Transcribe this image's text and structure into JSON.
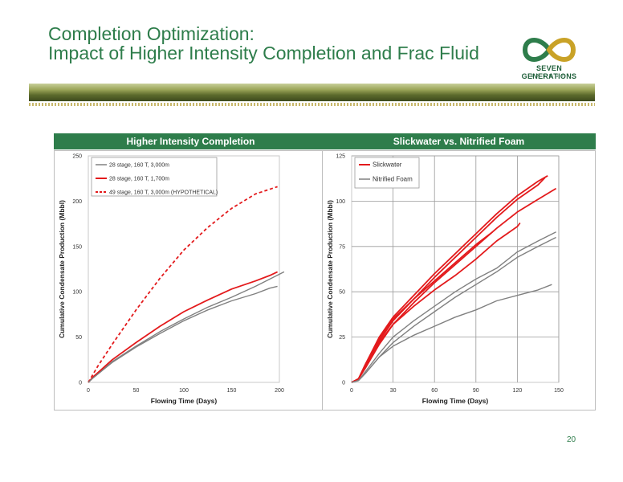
{
  "header": {
    "title_line1": "Completion Optimization:",
    "title_line2": "Impact of Higher Intensity Completion and Frac Fluid",
    "logo_text": "SEVEN GENERATIONS",
    "logo_subtext": "ENERGY",
    "page_number": "20"
  },
  "colors": {
    "brand_green": "#2e7d4b",
    "red_series": "#e31a1c",
    "gray_series": "#808080"
  },
  "panels": [
    {
      "heading": "Higher Intensity Completion"
    },
    {
      "heading": "Slickwater vs. Nitrified Foam"
    }
  ],
  "chart_data": [
    {
      "type": "line",
      "xlabel": "Flowing Time (Days)",
      "ylabel": "Cumulative Condensate Production (Mbbl)",
      "xlim": [
        0,
        200
      ],
      "ylim": [
        0,
        250
      ],
      "xticks": [
        "0",
        "50",
        "100",
        "150",
        "200"
      ],
      "yticks": [
        "0",
        "50",
        "100",
        "150",
        "200",
        "250"
      ],
      "grid": false,
      "legend": "top-left",
      "series": [
        {
          "name": "28 stage, 160 T, 3,000m",
          "color": "#808080",
          "style": "solid",
          "points": [
            [
              0,
              0
            ],
            [
              5,
              5
            ],
            [
              25,
              23
            ],
            [
              50,
              40
            ],
            [
              75,
              56
            ],
            [
              100,
              70
            ],
            [
              125,
              83
            ],
            [
              150,
              94
            ],
            [
              175,
              106
            ],
            [
              190,
              114
            ],
            [
              205,
              122
            ]
          ]
        },
        {
          "name": "28 stage, 160 T, 1,700m",
          "color": "#e31a1c",
          "style": "solid",
          "points": [
            [
              0,
              0
            ],
            [
              5,
              6
            ],
            [
              25,
              25
            ],
            [
              50,
              44
            ],
            [
              75,
              62
            ],
            [
              100,
              78
            ],
            [
              125,
              91
            ],
            [
              150,
              103
            ],
            [
              175,
              112
            ],
            [
              190,
              118
            ],
            [
              198,
              122
            ]
          ]
        },
        {
          "name": "49 stage, 160 T, 3,000m (HYPOTHETICAL)",
          "color": "#e31a1c",
          "style": "dashed",
          "points": [
            [
              0,
              0
            ],
            [
              10,
              18
            ],
            [
              25,
              42
            ],
            [
              50,
              80
            ],
            [
              75,
              115
            ],
            [
              100,
              146
            ],
            [
              125,
              171
            ],
            [
              150,
              192
            ],
            [
              175,
              208
            ],
            [
              198,
              216
            ]
          ]
        },
        {
          "name": "",
          "color": "#808080",
          "style": "solid",
          "points": [
            [
              0,
              0
            ],
            [
              5,
              5
            ],
            [
              25,
              22
            ],
            [
              50,
              39
            ],
            [
              75,
              54
            ],
            [
              100,
              68
            ],
            [
              125,
              80
            ],
            [
              150,
              90
            ],
            [
              175,
              98
            ],
            [
              190,
              104
            ],
            [
              198,
              106
            ]
          ]
        }
      ]
    },
    {
      "type": "line",
      "xlabel": "Flowing Time (Days)",
      "ylabel": "Cumulative Condensate Production (Mbbl)",
      "xlim": [
        0,
        140
      ],
      "ylim": [
        0,
        125
      ],
      "xticks": [
        "0",
        "30",
        "60",
        "90",
        "120",
        "150"
      ],
      "yticks": [
        "0",
        "25",
        "50",
        "75",
        "100",
        "125"
      ],
      "grid": true,
      "legend": "top-left",
      "series": [
        {
          "name": "Slickwater",
          "color": "#e31a1c",
          "style": "solid",
          "points": [
            [
              0,
              0
            ],
            [
              5,
              2
            ],
            [
              10,
              10
            ],
            [
              20,
              25
            ],
            [
              30,
              36
            ],
            [
              45,
              48
            ],
            [
              60,
              60
            ],
            [
              75,
              71
            ],
            [
              90,
              82
            ],
            [
              105,
              93
            ],
            [
              120,
              103
            ],
            [
              135,
              111
            ],
            [
              142,
              114
            ]
          ]
        },
        {
          "name": "",
          "color": "#e31a1c",
          "style": "solid",
          "points": [
            [
              0,
              0
            ],
            [
              5,
              2
            ],
            [
              10,
              9
            ],
            [
              20,
              23
            ],
            [
              30,
              34
            ],
            [
              45,
              46
            ],
            [
              60,
              58
            ],
            [
              75,
              69
            ],
            [
              90,
              80
            ],
            [
              105,
              91
            ],
            [
              120,
              101
            ],
            [
              135,
              109
            ],
            [
              140,
              113
            ]
          ]
        },
        {
          "name": "",
          "color": "#e31a1c",
          "style": "solid",
          "points": [
            [
              0,
              0
            ],
            [
              5,
              2
            ],
            [
              10,
              8
            ],
            [
              20,
              21
            ],
            [
              30,
              32
            ],
            [
              45,
              44
            ],
            [
              60,
              55
            ],
            [
              75,
              65
            ],
            [
              90,
              75
            ],
            [
              105,
              85
            ],
            [
              120,
              94
            ],
            [
              135,
              101
            ],
            [
              148,
              107
            ]
          ]
        },
        {
          "name": "",
          "color": "#e31a1c",
          "style": "solid",
          "points": [
            [
              0,
              0
            ],
            [
              5,
              2
            ],
            [
              10,
              10
            ],
            [
              20,
              24
            ],
            [
              30,
              35
            ],
            [
              45,
              46
            ],
            [
              60,
              56
            ],
            [
              75,
              66
            ],
            [
              90,
              76
            ],
            [
              102,
              83
            ]
          ]
        },
        {
          "name": "",
          "color": "#e31a1c",
          "style": "solid",
          "points": [
            [
              0,
              0
            ],
            [
              5,
              2
            ],
            [
              10,
              9
            ],
            [
              20,
              22
            ],
            [
              30,
              32
            ],
            [
              45,
              42
            ],
            [
              60,
              51
            ],
            [
              75,
              59
            ],
            [
              90,
              68
            ],
            [
              105,
              78
            ],
            [
              120,
              86
            ],
            [
              122,
              88
            ]
          ]
        },
        {
          "name": "Nitrified Foam",
          "color": "#808080",
          "style": "solid",
          "points": [
            [
              0,
              0
            ],
            [
              5,
              1
            ],
            [
              10,
              6
            ],
            [
              20,
              16
            ],
            [
              30,
              25
            ],
            [
              45,
              34
            ],
            [
              60,
              42
            ],
            [
              75,
              50
            ],
            [
              90,
              57
            ],
            [
              105,
              63
            ],
            [
              120,
              72
            ],
            [
              135,
              78
            ],
            [
              148,
              83
            ]
          ]
        },
        {
          "name": "",
          "color": "#808080",
          "style": "solid",
          "points": [
            [
              0,
              0
            ],
            [
              5,
              1
            ],
            [
              10,
              5
            ],
            [
              20,
              14
            ],
            [
              30,
              22
            ],
            [
              45,
              31
            ],
            [
              60,
              39
            ],
            [
              75,
              47
            ],
            [
              90,
              54
            ],
            [
              105,
              61
            ],
            [
              120,
              69
            ],
            [
              135,
              75
            ],
            [
              148,
              80
            ]
          ]
        },
        {
          "name": "",
          "color": "#808080",
          "style": "solid",
          "points": [
            [
              0,
              0
            ],
            [
              5,
              1
            ],
            [
              10,
              5
            ],
            [
              20,
              14
            ],
            [
              30,
              20
            ],
            [
              45,
              26
            ],
            [
              60,
              31
            ],
            [
              75,
              36
            ],
            [
              90,
              40
            ],
            [
              105,
              45
            ],
            [
              120,
              48
            ],
            [
              135,
              51
            ],
            [
              145,
              54
            ]
          ]
        }
      ]
    }
  ]
}
